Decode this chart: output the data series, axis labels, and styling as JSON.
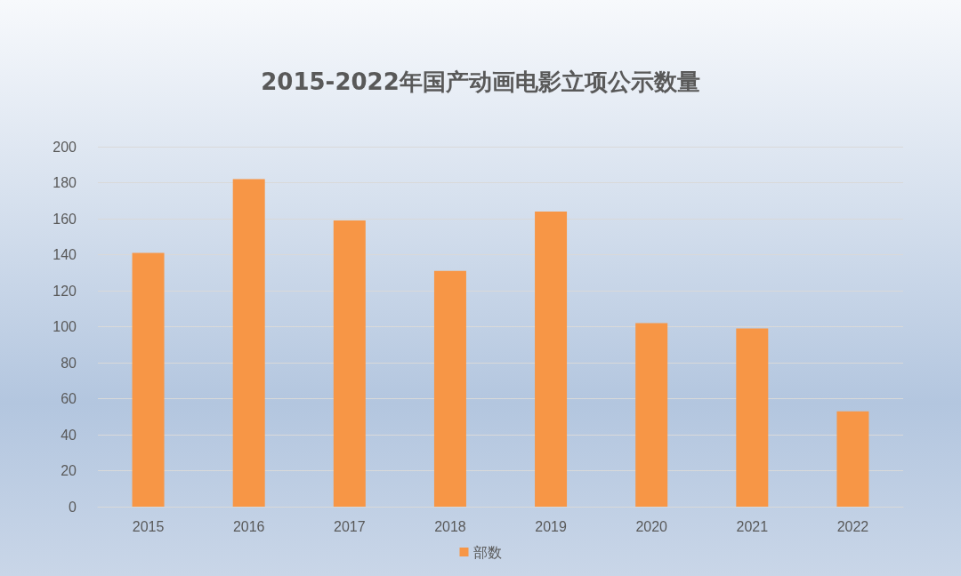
{
  "chart_data": {
    "type": "bar",
    "title": "2015-2022年国产动画电影立项公示数量",
    "categories": [
      "2015",
      "2016",
      "2017",
      "2018",
      "2019",
      "2020",
      "2021",
      "2022"
    ],
    "series": [
      {
        "name": "部数",
        "color": "#f79646",
        "values": [
          141,
          182,
          159,
          131,
          164,
          102,
          99,
          53
        ]
      }
    ],
    "ylim": [
      0,
      200
    ],
    "yticks": [
      0,
      20,
      40,
      60,
      80,
      100,
      120,
      140,
      160,
      180,
      200
    ],
    "grid": "y",
    "legend": "bottom"
  }
}
